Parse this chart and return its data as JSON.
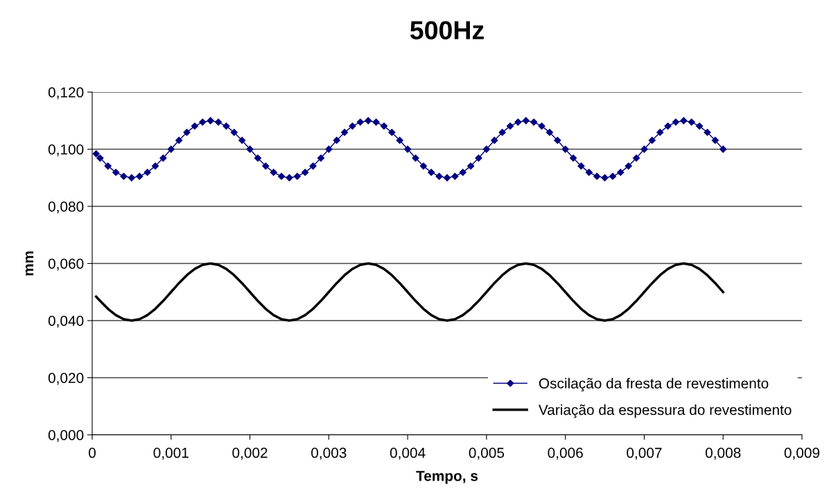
{
  "chart_data": {
    "type": "line",
    "title": "500Hz",
    "xlabel": "Tempo, s",
    "ylabel": "mm",
    "x": [
      5e-05,
      0.0001,
      0.0002,
      0.0003,
      0.0004,
      0.0005,
      0.0006,
      0.0007,
      0.0008,
      0.0009,
      0.001,
      0.0011,
      0.0012,
      0.0013,
      0.0014,
      0.0015,
      0.0016,
      0.0017,
      0.0018,
      0.0019,
      0.002,
      0.0021,
      0.0022,
      0.0023,
      0.0024,
      0.0025,
      0.0026,
      0.0027,
      0.0028,
      0.0029,
      0.003,
      0.0031,
      0.0032,
      0.0033,
      0.0034,
      0.0035,
      0.0036,
      0.0037,
      0.0038,
      0.0039,
      0.004,
      0.0041,
      0.0042,
      0.0043,
      0.0044,
      0.0045,
      0.0046,
      0.0047,
      0.0048,
      0.0049,
      0.005,
      0.0051,
      0.0052,
      0.0053,
      0.0054,
      0.0055,
      0.0056,
      0.0057,
      0.0058,
      0.0059,
      0.006,
      0.0061,
      0.0062,
      0.0063,
      0.0064,
      0.0065,
      0.0066,
      0.0067,
      0.0068,
      0.0069,
      0.007,
      0.0071,
      0.0072,
      0.0073,
      0.0074,
      0.0075,
      0.0076,
      0.0077,
      0.0078,
      0.0079,
      0.008
    ],
    "series": [
      {
        "name": "Oscilação da fresta de revestimento",
        "color": "#000080",
        "marker": "diamond",
        "values": [
          0.0984,
          0.0969,
          0.0941,
          0.0919,
          0.0905,
          0.09,
          0.0905,
          0.0919,
          0.0941,
          0.0969,
          0.1,
          0.1031,
          0.1059,
          0.1081,
          0.1095,
          0.11,
          0.1095,
          0.1081,
          0.1059,
          0.1031,
          0.1,
          0.0969,
          0.0941,
          0.0919,
          0.0905,
          0.09,
          0.0905,
          0.0919,
          0.0941,
          0.0969,
          0.1,
          0.1031,
          0.1059,
          0.1081,
          0.1095,
          0.11,
          0.1095,
          0.1081,
          0.1059,
          0.1031,
          0.1,
          0.0969,
          0.0941,
          0.0919,
          0.0905,
          0.09,
          0.0905,
          0.0919,
          0.0941,
          0.0969,
          0.1,
          0.1031,
          0.1059,
          0.1081,
          0.1095,
          0.11,
          0.1095,
          0.1081,
          0.1059,
          0.1031,
          0.1,
          0.0969,
          0.0941,
          0.0919,
          0.0905,
          0.09,
          0.0905,
          0.0919,
          0.0941,
          0.0969,
          0.1,
          0.1031,
          0.1059,
          0.1081,
          0.1095,
          0.11,
          0.1095,
          0.1081,
          0.1059,
          0.1031,
          0.1
        ]
      },
      {
        "name": "Variação da espessura do revestimento",
        "color": "#000000",
        "marker": "none",
        "values": [
          0.0484,
          0.0469,
          0.0441,
          0.0419,
          0.0405,
          0.04,
          0.0405,
          0.0419,
          0.0441,
          0.0469,
          0.05,
          0.0531,
          0.0559,
          0.0581,
          0.0595,
          0.06,
          0.0595,
          0.0581,
          0.0559,
          0.0531,
          0.05,
          0.0469,
          0.0441,
          0.0419,
          0.0405,
          0.04,
          0.0405,
          0.0419,
          0.0441,
          0.0469,
          0.05,
          0.0531,
          0.0559,
          0.0581,
          0.0595,
          0.06,
          0.0595,
          0.0581,
          0.0559,
          0.0531,
          0.05,
          0.0469,
          0.0441,
          0.0419,
          0.0405,
          0.04,
          0.0405,
          0.0419,
          0.0441,
          0.0469,
          0.05,
          0.0531,
          0.0559,
          0.0581,
          0.0595,
          0.06,
          0.0595,
          0.0581,
          0.0559,
          0.0531,
          0.05,
          0.0469,
          0.0441,
          0.0419,
          0.0405,
          0.04,
          0.0405,
          0.0419,
          0.0441,
          0.0469,
          0.05,
          0.0531,
          0.0559,
          0.0581,
          0.0595,
          0.06,
          0.0595,
          0.0581,
          0.0559,
          0.0531,
          0.05
        ]
      }
    ],
    "xlim": [
      0,
      0.009
    ],
    "xticks": [
      0,
      {
        "value": 0.001,
        "label": "0,001"
      },
      {
        "value": 0.002,
        "label": "0,002"
      },
      {
        "value": 0.003,
        "label": "0,003"
      },
      {
        "value": 0.004,
        "label": "0,004"
      },
      {
        "value": 0.005,
        "label": "0,005"
      },
      {
        "value": 0.006,
        "label": "0,006"
      },
      {
        "value": 0.007,
        "label": "0,007"
      },
      {
        "value": 0.008,
        "label": "0,008"
      },
      {
        "value": 0.009,
        "label": "0,009"
      }
    ],
    "ylim": [
      0,
      0.12
    ],
    "yticks": [
      {
        "value": 0,
        "label": "0,000"
      },
      {
        "value": 0.02,
        "label": "0,020"
      },
      {
        "value": 0.04,
        "label": "0,040"
      },
      {
        "value": 0.06,
        "label": "0,060"
      },
      {
        "value": 0.08,
        "label": "0,080"
      },
      {
        "value": 0.1,
        "label": "0,100"
      },
      {
        "value": 0.12,
        "label": "0,120"
      }
    ],
    "grid": "y",
    "legend": "bottom right",
    "line_style": "solid"
  }
}
